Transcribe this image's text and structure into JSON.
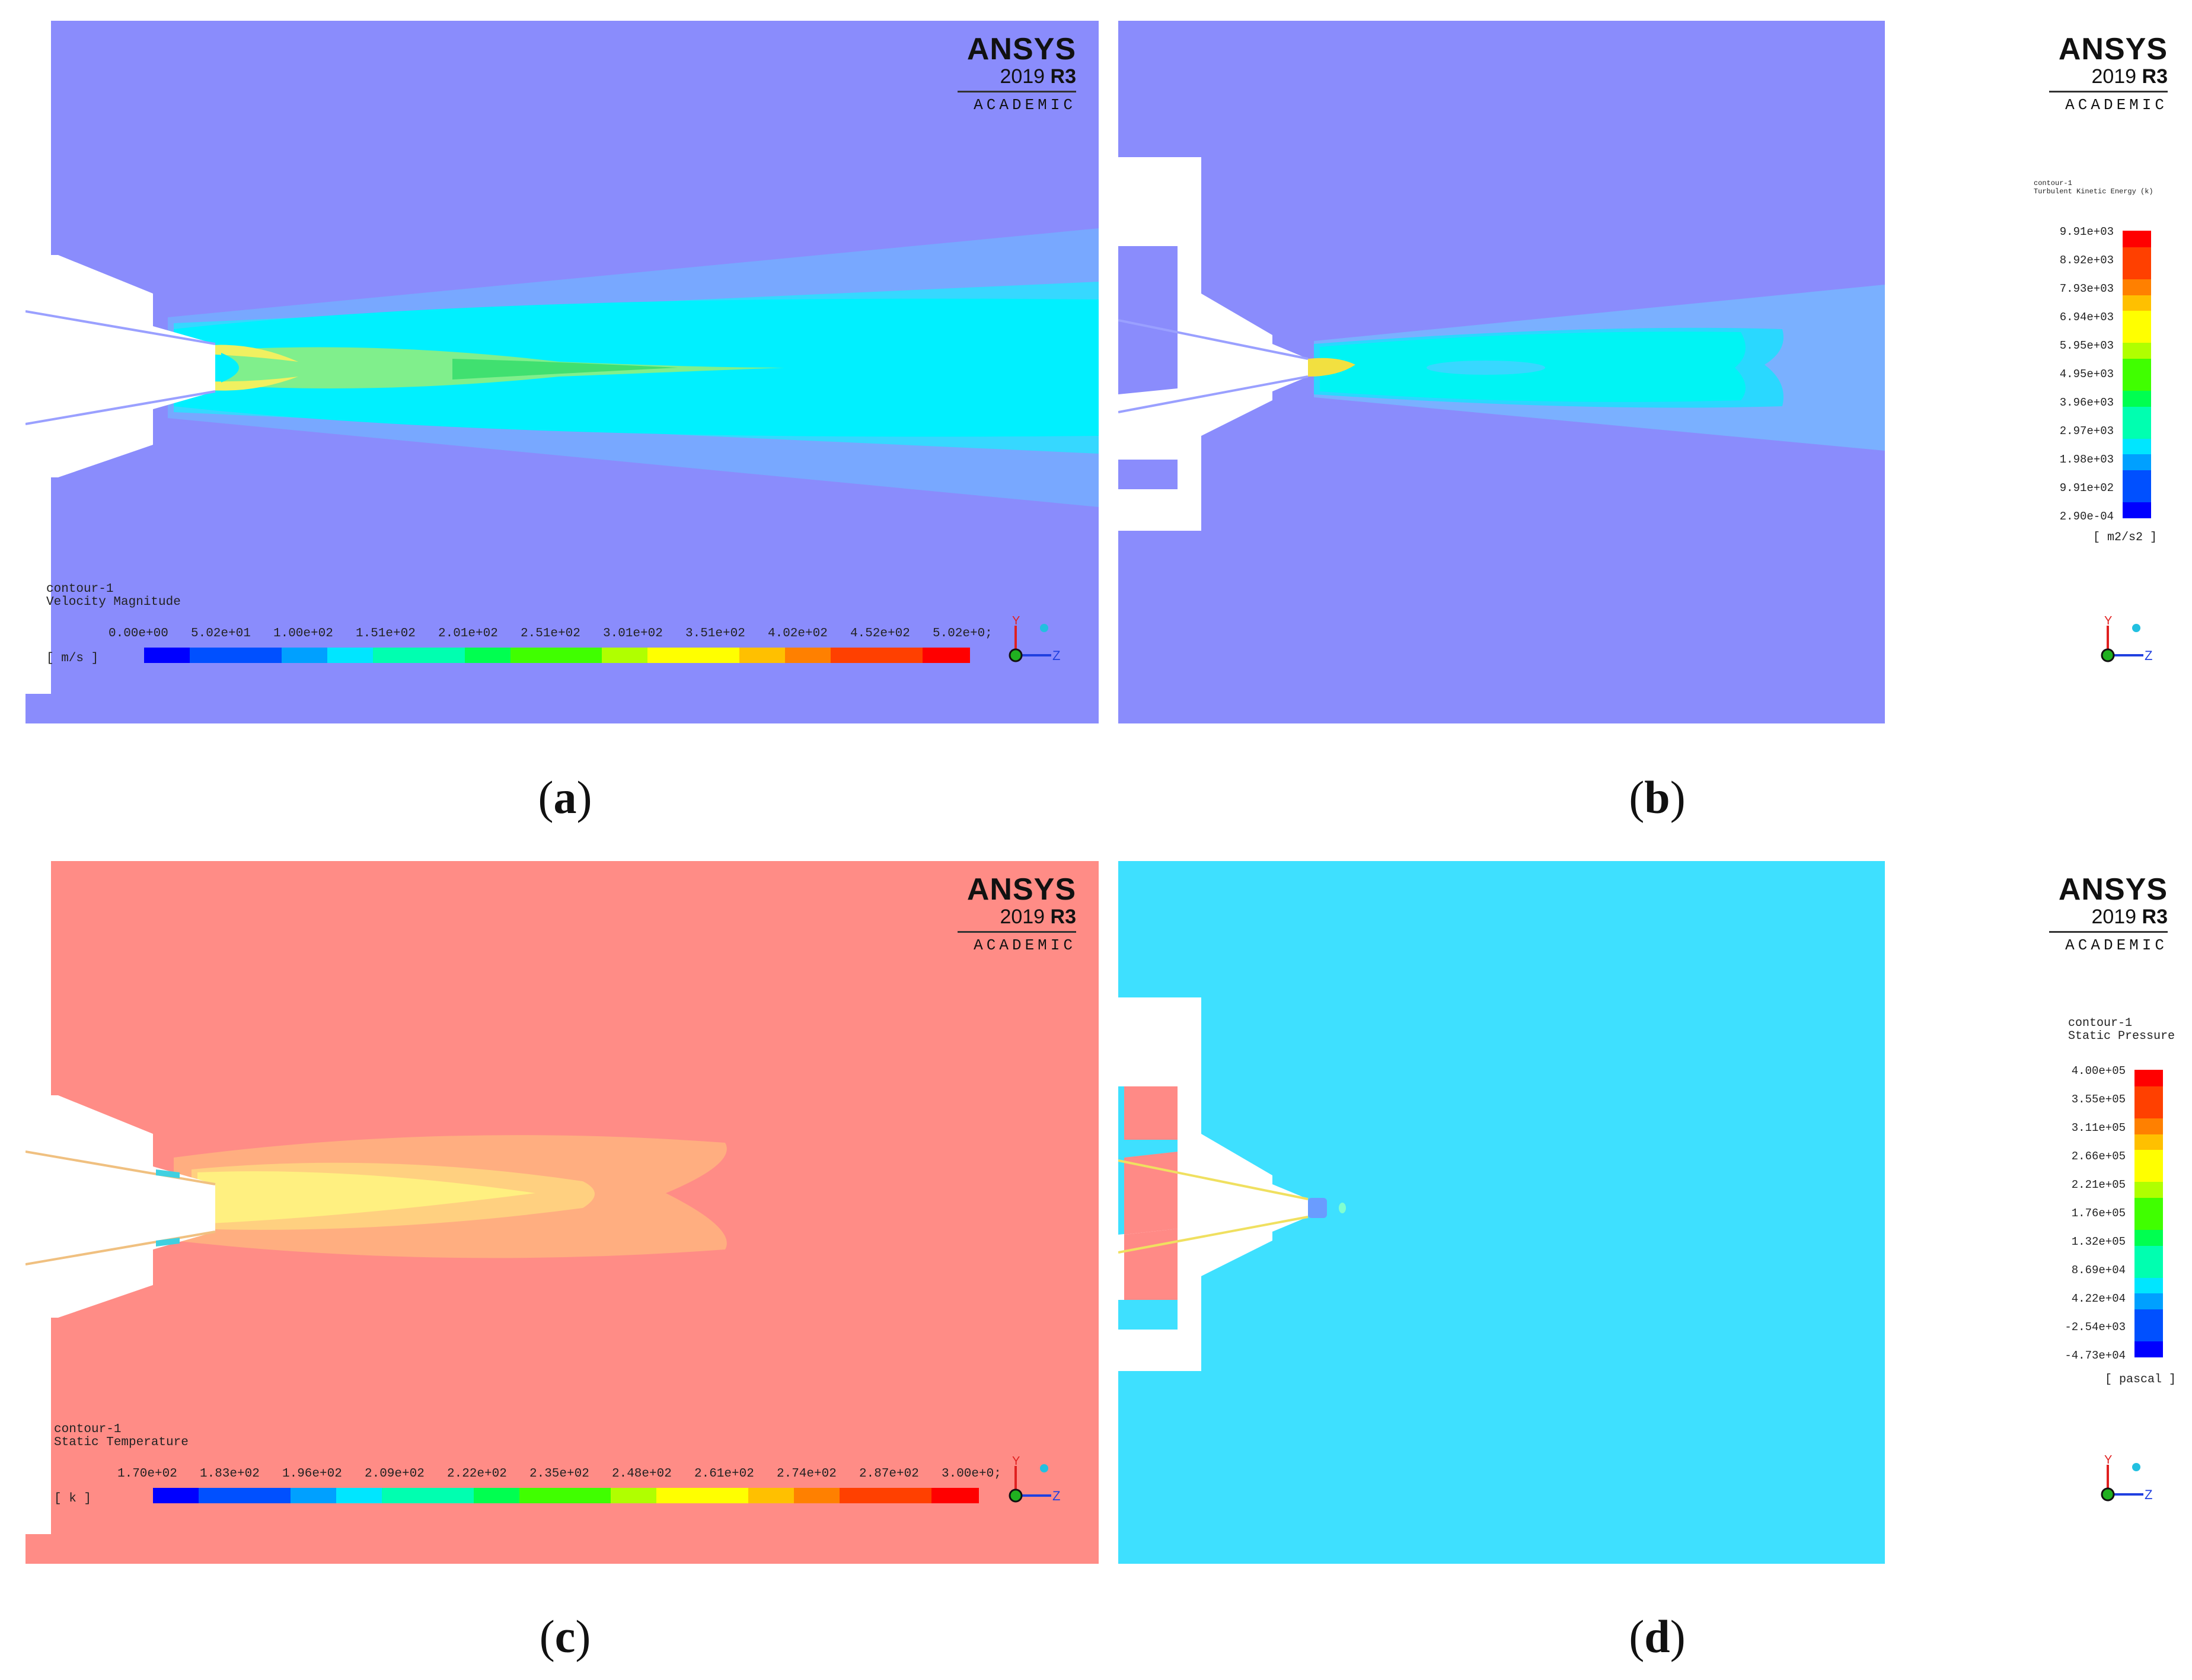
{
  "colormap": [
    "#0000ff",
    "#0050ff",
    "#00a0ff",
    "#00e6ff",
    "#00ffb0",
    "#00ff50",
    "#40ff00",
    "#b0ff00",
    "#ffff00",
    "#ffc000",
    "#ff8000",
    "#ff4000",
    "#ff0000"
  ],
  "logo": {
    "name": "ANSYS",
    "version": "2019",
    "release": "R3",
    "edition": "ACADEMIC"
  },
  "triad": {
    "y_label": "Y",
    "z_label": "Z"
  },
  "panels": {
    "a": {
      "caption_letter": "a",
      "legend": {
        "title_line1": "contour-1",
        "title_line2": "Velocity Magnitude",
        "unit": "[ m/s ]",
        "ticks": [
          "0.00e+00",
          "5.02e+01",
          "1.00e+02",
          "1.51e+02",
          "2.01e+02",
          "2.51e+02",
          "3.01e+02",
          "3.51e+02",
          "4.02e+02",
          "4.52e+02",
          "5.02e+0;"
        ]
      },
      "background_color": "#8a8cfc"
    },
    "b": {
      "caption_letter": "b",
      "legend": {
        "title_line1": "contour-1",
        "title_line2": "Turbulent Kinetic Energy (k)",
        "unit": "[ m2/s2 ]",
        "ticks": [
          "9.91e+03",
          "8.92e+03",
          "7.93e+03",
          "6.94e+03",
          "5.95e+03",
          "4.95e+03",
          "3.96e+03",
          "2.97e+03",
          "1.98e+03",
          "9.91e+02",
          "2.90e-04"
        ]
      },
      "background_color": "#8a8cfc"
    },
    "c": {
      "caption_letter": "c",
      "legend": {
        "title_line1": "contour-1",
        "title_line2": "Static Temperature",
        "unit": "[ k ]",
        "ticks": [
          "1.70e+02",
          "1.83e+02",
          "1.96e+02",
          "2.09e+02",
          "2.22e+02",
          "2.35e+02",
          "2.48e+02",
          "2.61e+02",
          "2.74e+02",
          "2.87e+02",
          "3.00e+0;"
        ]
      },
      "background_color": "#ff8c86"
    },
    "d": {
      "caption_letter": "d",
      "legend": {
        "title_line1": "contour-1",
        "title_line2": "Static Pressure",
        "unit": "[ pascal ]",
        "ticks": [
          "4.00e+05",
          "3.55e+05",
          "3.11e+05",
          "2.66e+05",
          "2.21e+05",
          "1.76e+05",
          "1.32e+05",
          "8.69e+04",
          "4.22e+04",
          "-2.54e+03",
          "-4.73e+04"
        ]
      },
      "background_color": "#3ee0ff"
    }
  }
}
